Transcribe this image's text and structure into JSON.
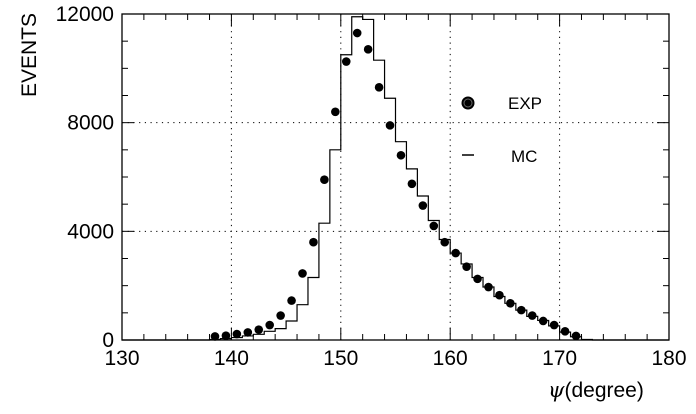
{
  "chart_data": {
    "type": "histogram",
    "xlabel_symbol": "ψ",
    "xlabel_text": "(degree)",
    "ylabel": "EVENTS",
    "xlim": [
      130,
      180
    ],
    "ylim": [
      0,
      12000
    ],
    "x_ticks": [
      130,
      140,
      150,
      160,
      170,
      180
    ],
    "y_ticks": [
      0,
      4000,
      8000,
      12000
    ],
    "grid": true,
    "legend_position": "right",
    "series": [
      {
        "name": "EXP",
        "kind": "points",
        "x": [
          138.5,
          139.5,
          140.5,
          141.5,
          142.5,
          143.5,
          144.5,
          145.5,
          146.5,
          147.5,
          148.5,
          149.5,
          150.5,
          151.5,
          152.5,
          153.5,
          154.5,
          155.5,
          156.5,
          157.5,
          158.5,
          159.5,
          160.5,
          161.5,
          162.5,
          163.5,
          164.5,
          165.5,
          166.5,
          167.5,
          168.5,
          169.5,
          170.5,
          171.5
        ],
        "y": [
          130,
          160,
          220,
          280,
          380,
          550,
          900,
          1450,
          2450,
          3600,
          5900,
          8400,
          10250,
          11300,
          10700,
          9300,
          7900,
          6800,
          5750,
          4950,
          4200,
          3600,
          3200,
          2700,
          2250,
          1950,
          1650,
          1350,
          1100,
          900,
          700,
          550,
          320,
          150
        ]
      },
      {
        "name": "MC",
        "kind": "step",
        "edges": [
          130,
          131,
          132,
          133,
          134,
          135,
          136,
          137,
          138,
          139,
          140,
          141,
          142,
          143,
          144,
          145,
          146,
          147,
          148,
          149,
          150,
          151,
          152,
          153,
          154,
          155,
          156,
          157,
          158,
          159,
          160,
          161,
          162,
          163,
          164,
          165,
          166,
          167,
          168,
          169,
          170,
          171,
          172,
          173,
          174,
          175,
          176,
          177,
          178,
          179,
          180
        ],
        "y": [
          0,
          0,
          0,
          0,
          0,
          0,
          0,
          0,
          20,
          50,
          90,
          150,
          210,
          320,
          420,
          700,
          1300,
          2300,
          4300,
          7000,
          10500,
          11900,
          11800,
          10300,
          8900,
          7300,
          6300,
          5300,
          4400,
          3700,
          3200,
          2800,
          2300,
          1950,
          1600,
          1350,
          1100,
          870,
          720,
          520,
          290,
          120,
          20,
          0,
          0,
          0,
          0,
          0,
          0,
          0
        ]
      }
    ],
    "legend": [
      {
        "label": "EXP",
        "marker": "circle"
      },
      {
        "label": "MC",
        "marker": "line"
      }
    ]
  }
}
